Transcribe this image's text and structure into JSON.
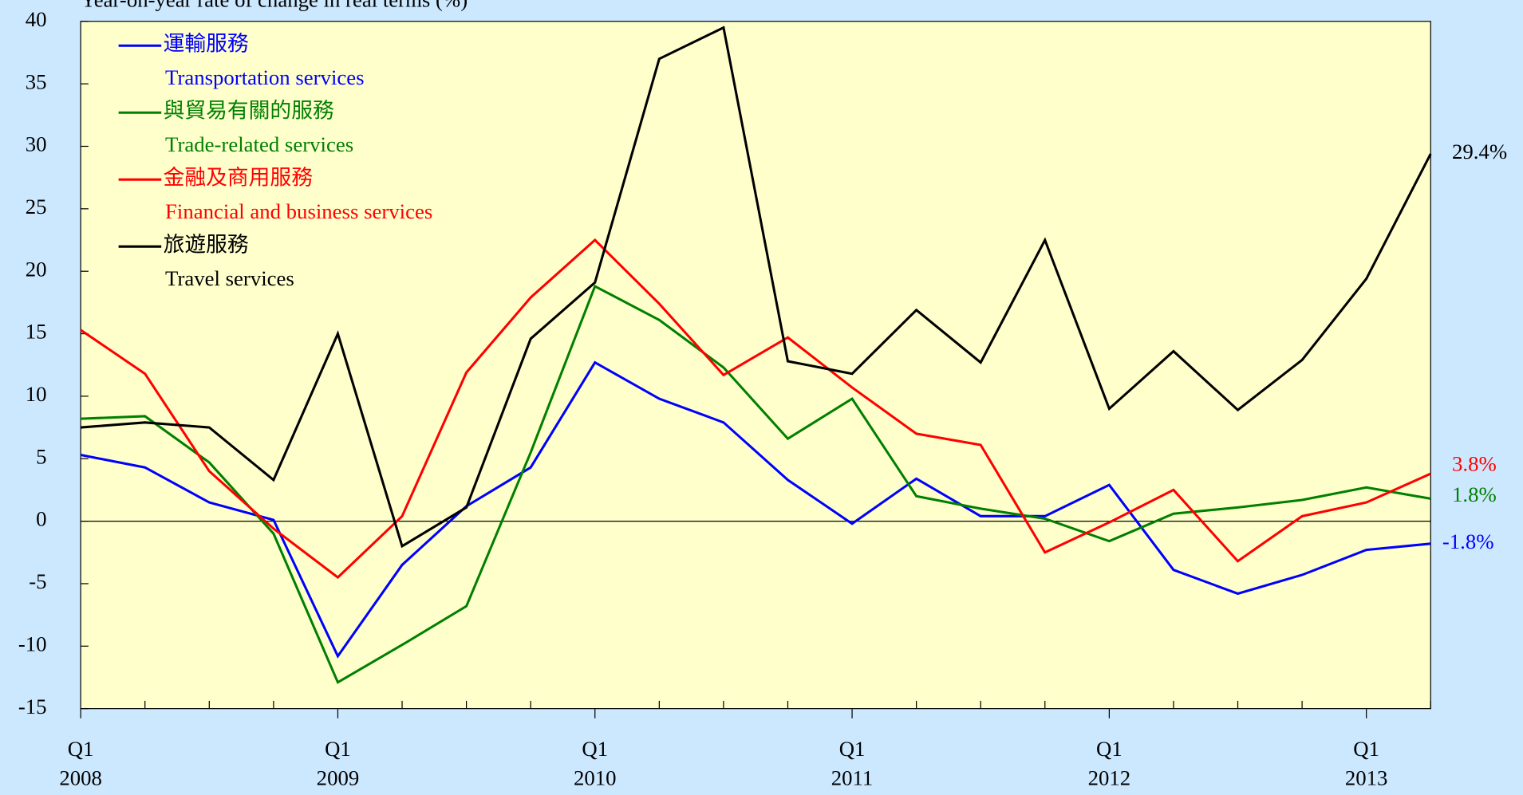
{
  "chart_data": {
    "type": "line",
    "title": "Year-on-year rate of change in real terms (%)",
    "categories": [
      "Q1 2008",
      null,
      null,
      null,
      "Q1 2009",
      null,
      null,
      null,
      "Q1 2010",
      null,
      null,
      null,
      "Q1 2011",
      null,
      null,
      null,
      "Q1 2012",
      null,
      null,
      null,
      "Q1 2013",
      null
    ],
    "ylim": [
      -15,
      40
    ],
    "yticks": [
      -15,
      -10,
      -5,
      0,
      5,
      10,
      15,
      20,
      25,
      30,
      35,
      40
    ],
    "series": [
      {
        "name": "運輸服務",
        "name_en": "Transportation services",
        "color": "#0000ff",
        "values": [
          5.3,
          4.3,
          1.5,
          0.1,
          -10.8,
          -3.5,
          1.2,
          4.3,
          12.7,
          9.8,
          7.9,
          3.3,
          -0.2,
          3.4,
          0.4,
          0.4,
          2.9,
          -3.9,
          -5.8,
          -4.3,
          -2.3,
          -1.8
        ],
        "value_labels": [
          null,
          null,
          null,
          null,
          null,
          null,
          null,
          null,
          null,
          null,
          null,
          null,
          null,
          null,
          null,
          null,
          null,
          null,
          null,
          null,
          null,
          "-1.8%"
        ]
      },
      {
        "name": "與貿易有關的服務",
        "name_en": "Trade-related services",
        "color": "#008000",
        "values": [
          8.2,
          8.4,
          4.7,
          -1.0,
          -12.9,
          -9.9,
          -6.8,
          5.5,
          18.8,
          16.1,
          12.3,
          6.6,
          9.8,
          2.0,
          1.0,
          0.2,
          -1.6,
          0.6,
          1.1,
          1.7,
          2.7,
          1.8
        ],
        "value_labels": [
          null,
          null,
          null,
          null,
          null,
          null,
          null,
          null,
          null,
          null,
          null,
          null,
          null,
          null,
          null,
          null,
          null,
          null,
          null,
          null,
          null,
          "1.8%"
        ]
      },
      {
        "name": "金融及商用服務",
        "name_en": "Financial and business services",
        "color": "#ff0000",
        "values": [
          15.3,
          11.8,
          4.0,
          -0.6,
          -4.5,
          0.4,
          11.9,
          17.9,
          22.5,
          17.4,
          11.7,
          14.7,
          10.7,
          7.0,
          6.1,
          -2.5,
          -0.1,
          2.5,
          -3.2,
          0.4,
          1.5,
          3.8
        ],
        "value_labels": [
          null,
          null,
          null,
          null,
          null,
          null,
          null,
          null,
          null,
          null,
          null,
          null,
          null,
          null,
          null,
          null,
          null,
          null,
          null,
          null,
          null,
          "3.8%"
        ]
      },
      {
        "name": "旅遊服務",
        "name_en": "Travel services",
        "color": "#000000",
        "values": [
          7.5,
          7.9,
          7.5,
          3.3,
          15.0,
          -2.0,
          1.1,
          14.6,
          19.1,
          37.0,
          39.5,
          12.8,
          11.8,
          16.9,
          12.7,
          22.5,
          9.0,
          13.6,
          8.9,
          12.9,
          19.4,
          29.4
        ],
        "value_labels": [
          null,
          null,
          null,
          null,
          null,
          null,
          null,
          null,
          null,
          null,
          null,
          null,
          null,
          null,
          null,
          null,
          null,
          null,
          null,
          null,
          null,
          "29.4%"
        ]
      }
    ]
  }
}
